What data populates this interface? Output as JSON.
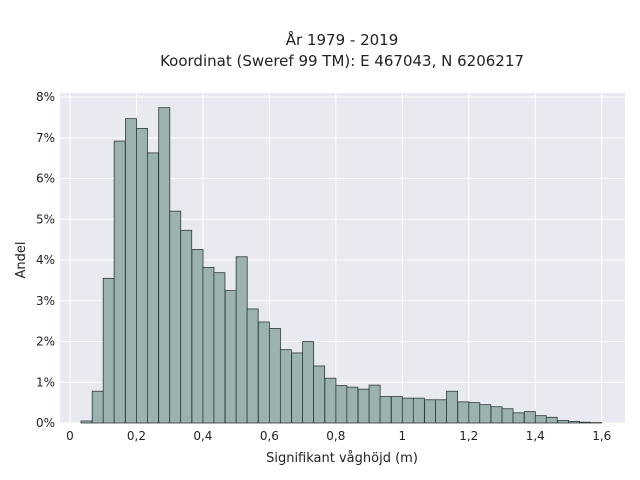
{
  "chart_data": {
    "type": "bar",
    "title_line1": "År 1979 - 2019",
    "title_line2": "Koordinat (Sweref 99 TM): E 467043, N 6206217",
    "xlabel": "Signifikant våghöjd (m)",
    "ylabel": "Andel",
    "x_ticks": [
      "0",
      "0,2",
      "0,4",
      "0,6",
      "0,8",
      "1",
      "1,2",
      "1,4",
      "1,6"
    ],
    "y_ticks": [
      "0%",
      "1%",
      "2%",
      "3%",
      "4%",
      "5%",
      "6%",
      "7%",
      "8%"
    ],
    "xlim": [
      -0.03,
      1.67
    ],
    "ylim": [
      0,
      8.1
    ],
    "grid": true,
    "bin_width": 0.0333,
    "bin_starts": [
      0.033,
      0.067,
      0.1,
      0.133,
      0.167,
      0.2,
      0.233,
      0.267,
      0.3,
      0.333,
      0.367,
      0.4,
      0.433,
      0.467,
      0.5,
      0.533,
      0.567,
      0.6,
      0.633,
      0.667,
      0.7,
      0.733,
      0.767,
      0.8,
      0.833,
      0.867,
      0.9,
      0.933,
      0.967,
      1.0,
      1.033,
      1.067,
      1.1,
      1.133,
      1.167,
      1.2,
      1.233,
      1.267,
      1.3,
      1.333,
      1.367,
      1.4,
      1.433,
      1.467,
      1.5,
      1.533,
      1.567
    ],
    "values": [
      0.05,
      0.78,
      3.55,
      6.92,
      7.47,
      7.23,
      6.63,
      7.74,
      5.2,
      4.73,
      4.26,
      3.82,
      3.69,
      3.25,
      4.08,
      2.8,
      2.48,
      2.32,
      1.8,
      1.72,
      2.0,
      1.4,
      1.1,
      0.92,
      0.88,
      0.83,
      0.93,
      0.65,
      0.65,
      0.61,
      0.61,
      0.57,
      0.57,
      0.78,
      0.52,
      0.5,
      0.45,
      0.4,
      0.35,
      0.25,
      0.28,
      0.18,
      0.14,
      0.06,
      0.04,
      0.02,
      0.01
    ],
    "colors": {
      "bar_fill": "#9bb2b0",
      "bar_stroke": "#2f3b3a",
      "plot_bg": "#e9e9f1",
      "grid": "#ffffff"
    }
  }
}
